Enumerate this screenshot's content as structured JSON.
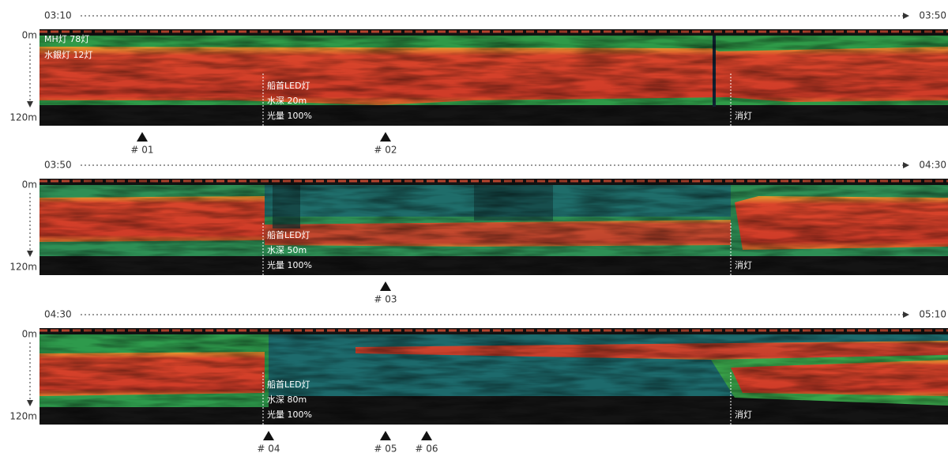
{
  "panels": [
    {
      "start_time": "03:10",
      "end_time": "03:50",
      "depth_top": "0m",
      "depth_bottom": "120m",
      "lamp_labels": [
        "MH灯 78灯",
        "水銀灯 12灯"
      ],
      "led_note": [
        "船首LED灯",
        "水深 20m",
        "光量 100%"
      ],
      "off_label": "消灯",
      "markers": [
        "# 01",
        "# 02"
      ]
    },
    {
      "start_time": "03:50",
      "end_time": "04:30",
      "depth_top": "0m",
      "depth_bottom": "120m",
      "led_note": [
        "船首LED灯",
        "水深 50m",
        "光量 100%"
      ],
      "off_label": "消灯",
      "markers": [
        "# 03"
      ]
    },
    {
      "start_time": "04:30",
      "end_time": "05:10",
      "depth_top": "0m",
      "depth_bottom": "120m",
      "led_note": [
        "船首LED灯",
        "水深 80m",
        "光量 100%"
      ],
      "off_label": "消灯",
      "markers": [
        "# 04",
        "# 05",
        "# 06"
      ]
    }
  ]
}
